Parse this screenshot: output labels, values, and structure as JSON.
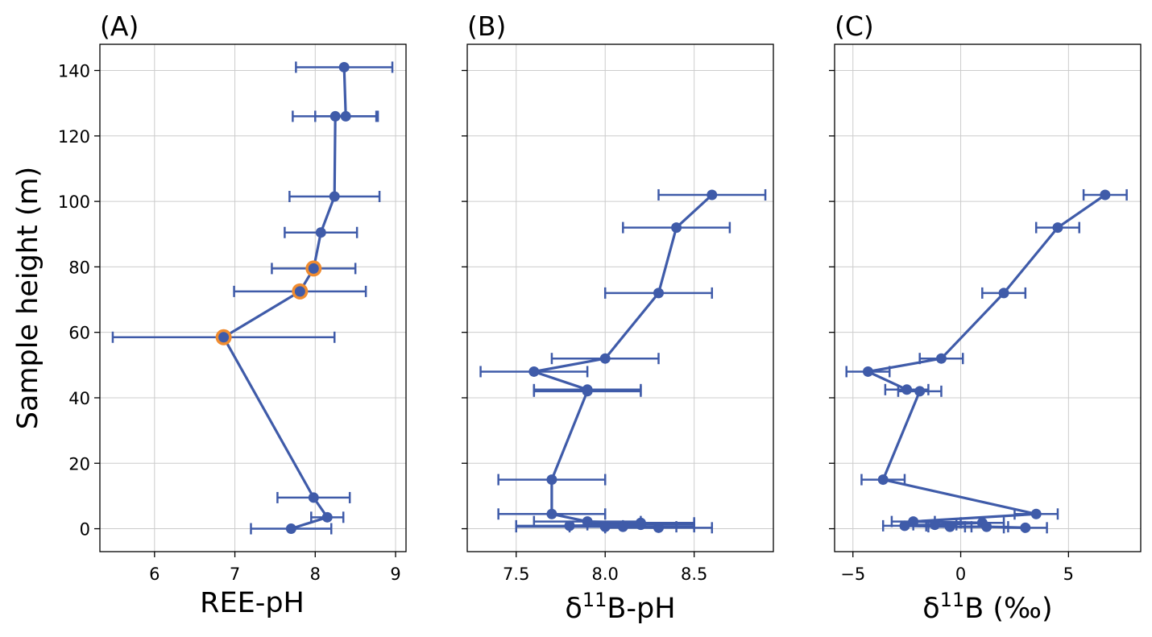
{
  "figure": {
    "ylabel": "Sample height (m)"
  },
  "colors": {
    "series": "#3f5ba9",
    "highlight": "#f08c30",
    "grid": "#cccccc",
    "axis": "#000000"
  },
  "chart_data": [
    {
      "type": "scatter",
      "title": "(A)",
      "xlabel": "REE-pH",
      "ylabel": "Sample height (m)",
      "xlim": [
        5.32,
        9.13
      ],
      "ylim": [
        -7,
        148
      ],
      "xticks": [
        6,
        7,
        8,
        9
      ],
      "xtick_labels": [
        "6",
        "7",
        "8",
        "9"
      ],
      "yticks": [
        0,
        20,
        40,
        60,
        80,
        100,
        120,
        140
      ],
      "ytick_labels": [
        "0",
        "20",
        "40",
        "60",
        "80",
        "100",
        "120",
        "140"
      ],
      "points": [
        {
          "x": 8.36,
          "y": 141,
          "err": 0.6
        },
        {
          "x": 8.38,
          "y": 126,
          "err": 0.38
        },
        {
          "x": 8.25,
          "y": 126,
          "err": 0.53
        },
        {
          "x": 8.24,
          "y": 101.5,
          "err": 0.56
        },
        {
          "x": 8.07,
          "y": 90.5,
          "err": 0.45
        },
        {
          "x": 7.98,
          "y": 79.5,
          "err": 0.52,
          "highlight": true
        },
        {
          "x": 7.81,
          "y": 72.5,
          "err": 0.82,
          "highlight": true
        },
        {
          "x": 6.86,
          "y": 58.5,
          "err": 1.38,
          "highlight": true
        },
        {
          "x": 7.98,
          "y": 9.5,
          "err": 0.45
        },
        {
          "x": 8.15,
          "y": 3.5,
          "err": 0.2
        },
        {
          "x": 7.7,
          "y": 0,
          "err": 0.5
        }
      ]
    },
    {
      "type": "scatter",
      "title": "(B)",
      "xlabel": "δ11B-pH",
      "xlabel_parts": {
        "base": "δ",
        "sup": "11",
        "rest": "B-pH"
      },
      "xlim": [
        7.225,
        8.945
      ],
      "ylim": [
        -7,
        148
      ],
      "xticks": [
        7.5,
        8.0,
        8.5
      ],
      "xtick_labels": [
        "7.5",
        "8.0",
        "8.5"
      ],
      "yticks": [
        0,
        20,
        40,
        60,
        80,
        100,
        120,
        140
      ],
      "points": [
        {
          "x": 8.6,
          "y": 102,
          "err": 0.3
        },
        {
          "x": 8.4,
          "y": 92,
          "err": 0.3
        },
        {
          "x": 8.3,
          "y": 72,
          "err": 0.3
        },
        {
          "x": 8.0,
          "y": 52,
          "err": 0.3
        },
        {
          "x": 7.6,
          "y": 48,
          "err": 0.3
        },
        {
          "x": 7.9,
          "y": 42.5,
          "err": 0.3
        },
        {
          "x": 7.9,
          "y": 42,
          "err": 0.3
        },
        {
          "x": 7.7,
          "y": 15,
          "err": 0.3
        },
        {
          "x": 7.7,
          "y": 4.5,
          "err": 0.3
        },
        {
          "x": 7.9,
          "y": 2.2,
          "err": 0.3
        },
        {
          "x": 8.2,
          "y": 1.8,
          "err": 0.3
        },
        {
          "x": 8.2,
          "y": 1.2,
          "err": 0.3
        },
        {
          "x": 7.8,
          "y": 0.9,
          "err": 0.3
        },
        {
          "x": 8.1,
          "y": 0.6,
          "err": 0.3
        },
        {
          "x": 8.0,
          "y": 0.6,
          "err": 0.5
        },
        {
          "x": 8.3,
          "y": 0.3,
          "err": 0.3
        }
      ]
    },
    {
      "type": "scatter",
      "title": "(C)",
      "xlabel": "δ11B (‰)",
      "xlabel_parts": {
        "base": "δ",
        "sup": "11",
        "rest": "B (‰)"
      },
      "xlim": [
        -5.85,
        8.35
      ],
      "ylim": [
        -7,
        148
      ],
      "xticks": [
        -5,
        0,
        5
      ],
      "xtick_labels": [
        "−5",
        "0",
        "5"
      ],
      "yticks": [
        0,
        20,
        40,
        60,
        80,
        100,
        120,
        140
      ],
      "points": [
        {
          "x": 6.7,
          "y": 102,
          "err": 1.0
        },
        {
          "x": 4.5,
          "y": 92,
          "err": 1.0
        },
        {
          "x": 2.0,
          "y": 72,
          "err": 1.0
        },
        {
          "x": -0.9,
          "y": 52,
          "err": 1.0
        },
        {
          "x": -4.3,
          "y": 48,
          "err": 1.0
        },
        {
          "x": -2.5,
          "y": 42.5,
          "err": 1.0
        },
        {
          "x": -1.9,
          "y": 42,
          "err": 1.0
        },
        {
          "x": -3.6,
          "y": 15,
          "err": 1.0
        },
        {
          "x": 3.5,
          "y": 4.5,
          "err": 1.0
        },
        {
          "x": -2.2,
          "y": 2.2,
          "err": 1.0
        },
        {
          "x": 1.0,
          "y": 1.8,
          "err": 1.0
        },
        {
          "x": -1.2,
          "y": 1.2,
          "err": 1.0
        },
        {
          "x": -2.6,
          "y": 0.9,
          "err": 1.0
        },
        {
          "x": -0.5,
          "y": 0.6,
          "err": 1.0
        },
        {
          "x": 1.2,
          "y": 0.6,
          "err": 1.0
        },
        {
          "x": 3.0,
          "y": 0.3,
          "err": 1.0
        }
      ]
    }
  ]
}
